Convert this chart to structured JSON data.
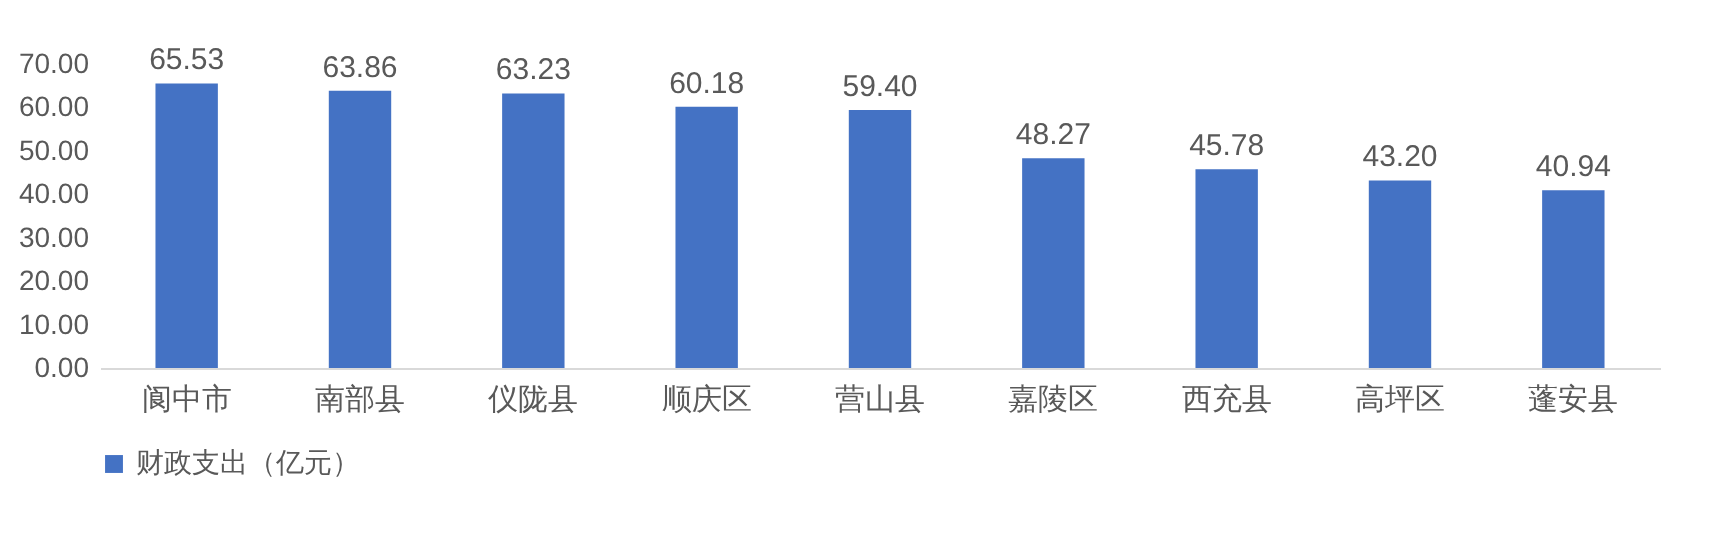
{
  "chart_data": {
    "type": "bar",
    "categories": [
      "阆中市",
      "南部县",
      "仪陇县",
      "顺庆区",
      "营山县",
      "嘉陵区",
      "西充县",
      "高坪区",
      "蓬安县"
    ],
    "series": [
      {
        "name": "财政支出（亿元）",
        "color": "#4472c4",
        "values": [
          65.53,
          63.86,
          63.23,
          60.18,
          59.4,
          48.27,
          45.78,
          43.2,
          40.94
        ]
      }
    ],
    "value_labels": [
      "65.53",
      "63.86",
      "63.23",
      "60.18",
      "59.40",
      "48.27",
      "45.78",
      "43.20",
      "40.94"
    ],
    "ylim": [
      0,
      70
    ],
    "yticks": [
      {
        "value": 0,
        "label": "0.00"
      },
      {
        "value": 10,
        "label": "10.00"
      },
      {
        "value": 20,
        "label": "20.00"
      },
      {
        "value": 30,
        "label": "30.00"
      },
      {
        "value": 40,
        "label": "40.00"
      },
      {
        "value": 50,
        "label": "50.00"
      },
      {
        "value": 60,
        "label": "60.00"
      },
      {
        "value": 70,
        "label": "70.00"
      }
    ],
    "grid": false,
    "legend": "bottom"
  }
}
